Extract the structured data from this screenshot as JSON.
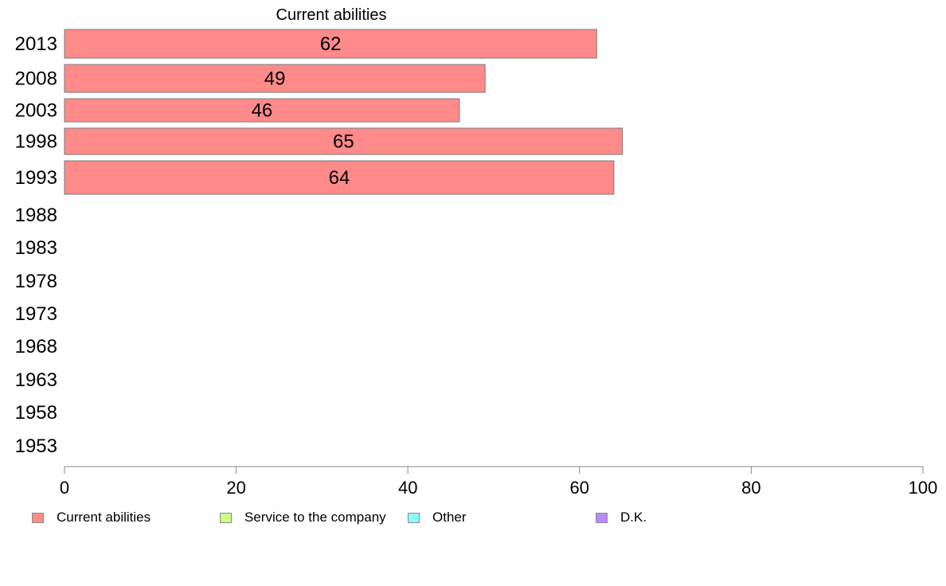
{
  "chart_data": {
    "type": "bar",
    "orientation": "horizontal",
    "title": "Current abilities",
    "categories": [
      "2013",
      "2008",
      "2003",
      "1998",
      "1993",
      "1988",
      "1983",
      "1978",
      "1973",
      "1968",
      "1963",
      "1958",
      "1953"
    ],
    "series": [
      {
        "name": "Current abilities",
        "color": "#ff8a8a",
        "values": [
          62,
          49,
          46,
          65,
          64,
          null,
          null,
          null,
          null,
          null,
          null,
          null,
          null
        ]
      }
    ],
    "data_labels": [
      "62",
      "49",
      "46",
      "65",
      "64"
    ],
    "xlim": [
      0,
      100
    ],
    "xticks": [
      0,
      20,
      40,
      60,
      80,
      100
    ],
    "xlabel": "",
    "ylabel": "",
    "grid": false,
    "legend": {
      "placement": "bottom",
      "items": [
        {
          "label": "Current abilities",
          "color": "#ff8a8a"
        },
        {
          "label": "Service to the company",
          "color": "#ccff88"
        },
        {
          "label": "Other",
          "color": "#88ffff"
        },
        {
          "label": "D.K.",
          "color": "#bb88ff"
        }
      ]
    }
  }
}
